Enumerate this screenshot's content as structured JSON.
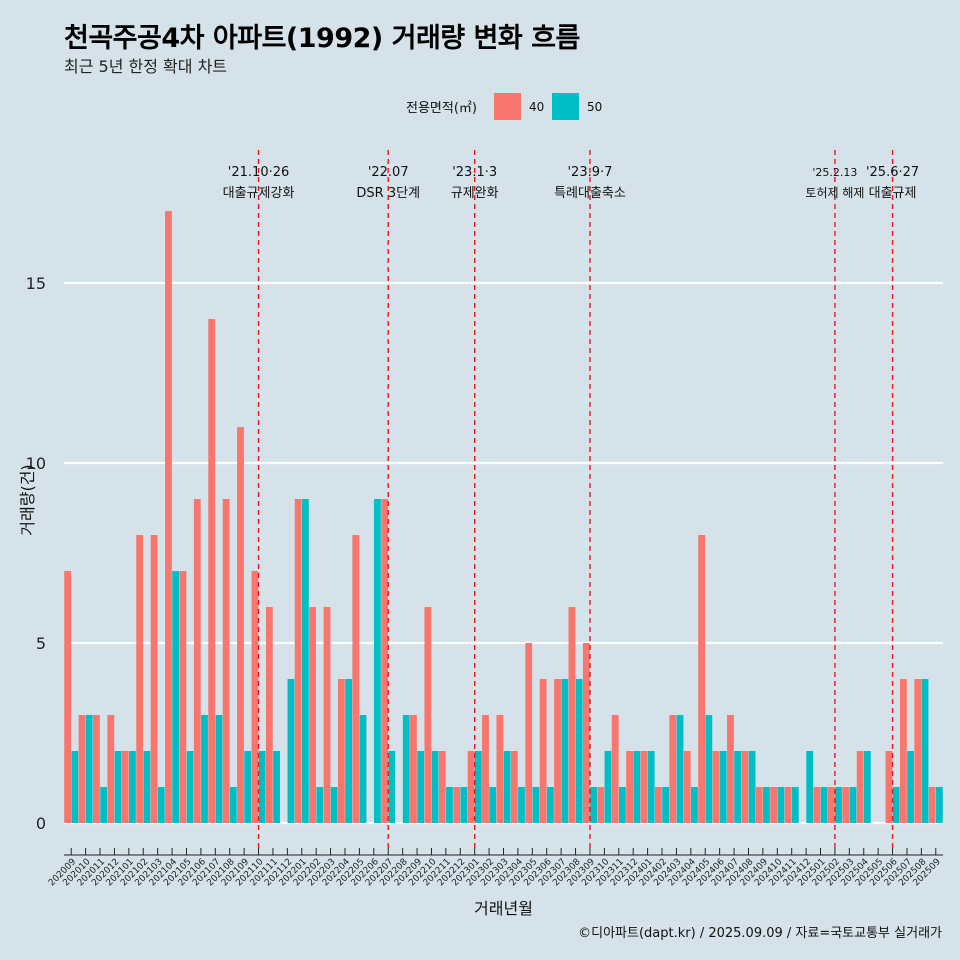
{
  "title": "천곡주공4차 아파트(1992) 거래량 변화 흐름",
  "subtitle": "최근 5년 한정 확대 차트",
  "caption": "©디아파트(dapt.kr) / 2025.09.09 / 자료=국토교통부 실거래가",
  "colors": {
    "series_40": "#f8766d",
    "series_50": "#00bfc4",
    "background": "#d6e2ea",
    "grid": "#ffffff",
    "event_line": "#e31a1c"
  },
  "chart_data": {
    "type": "bar",
    "xlabel": "거래년월",
    "ylabel": "거래량(건)",
    "ylim": [
      0,
      17.8
    ],
    "yticks": [
      0,
      5,
      10,
      15
    ],
    "legend": {
      "title": "전용면적(㎡)",
      "position": "top"
    },
    "categories": [
      "202009",
      "202010",
      "202011",
      "202012",
      "202101",
      "202102",
      "202103",
      "202104",
      "202105",
      "202106",
      "202107",
      "202108",
      "202109",
      "202110",
      "202111",
      "202112",
      "202201",
      "202202",
      "202203",
      "202204",
      "202205",
      "202206",
      "202207",
      "202208",
      "202209",
      "202210",
      "202211",
      "202212",
      "202301",
      "202302",
      "202303",
      "202304",
      "202305",
      "202306",
      "202307",
      "202308",
      "202309",
      "202310",
      "202311",
      "202312",
      "202401",
      "202402",
      "202403",
      "202404",
      "202405",
      "202406",
      "202407",
      "202408",
      "202409",
      "202410",
      "202411",
      "202412",
      "202501",
      "202502",
      "202503",
      "202504",
      "202505",
      "202506",
      "202507",
      "202508",
      "202509"
    ],
    "series": [
      {
        "name": "40",
        "values": [
          7,
          3,
          3,
          3,
          2,
          8,
          8,
          17,
          7,
          9,
          14,
          9,
          11,
          7,
          6,
          0,
          9,
          6,
          6,
          4,
          8,
          0,
          9,
          0,
          3,
          6,
          2,
          1,
          2,
          3,
          3,
          2,
          5,
          4,
          4,
          6,
          5,
          1,
          3,
          2,
          2,
          1,
          3,
          2,
          8,
          2,
          3,
          2,
          1,
          1,
          1,
          0,
          1,
          1,
          1,
          2,
          0,
          2,
          4,
          4,
          1
        ]
      },
      {
        "name": "50",
        "values": [
          2,
          3,
          1,
          2,
          2,
          2,
          1,
          7,
          2,
          3,
          3,
          1,
          2,
          2,
          2,
          4,
          9,
          1,
          1,
          4,
          3,
          9,
          2,
          3,
          2,
          2,
          1,
          1,
          2,
          1,
          2,
          1,
          1,
          1,
          4,
          4,
          1,
          2,
          1,
          2,
          2,
          1,
          3,
          1,
          3,
          2,
          2,
          2,
          1,
          1,
          1,
          2,
          1,
          1,
          1,
          2,
          0,
          1,
          2,
          4,
          1
        ]
      }
    ],
    "events": [
      {
        "category": "202110",
        "label_top": "'21.10·26",
        "label_bottom": "대출규제강화"
      },
      {
        "category": "202207",
        "label_top": "'22.07",
        "label_bottom": "DSR 3단계"
      },
      {
        "category": "202301",
        "label_top": "'23.1·3",
        "label_bottom": "규제완화"
      },
      {
        "category": "202309",
        "label_top": "'23.9·7",
        "label_bottom": "특례대출축소"
      },
      {
        "category": "202502",
        "label_top": "'25.2.13",
        "label_bottom": "토허제 해제"
      },
      {
        "category": "202506",
        "label_top": "'25.6·27",
        "label_bottom": "대출규제"
      }
    ]
  }
}
